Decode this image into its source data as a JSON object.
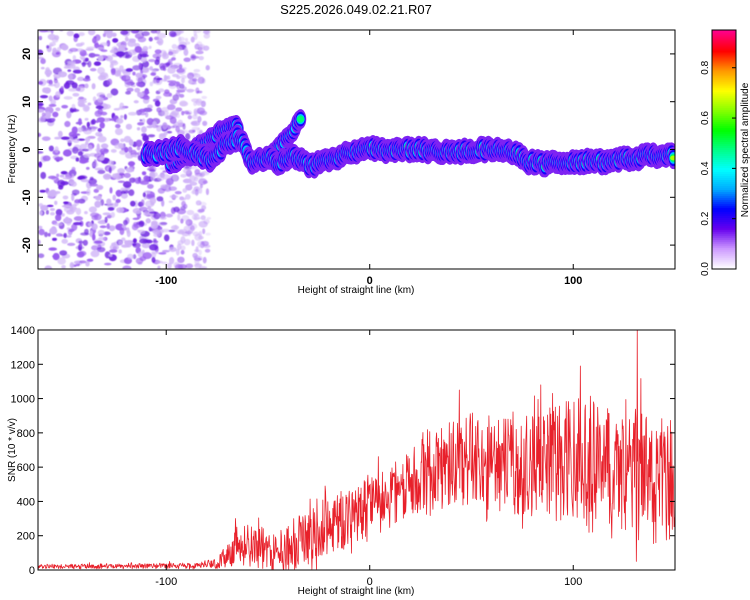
{
  "title": "S225.2026.049.02.21.R07",
  "colors": {
    "snr_line": "#e8202a",
    "background": "#ffffff",
    "frame": "#000000"
  },
  "chart_data": [
    {
      "type": "heatmap",
      "name": "spectrogram",
      "xlabel": "Height of straight line (km)",
      "ylabel": "Frequency (Hz)",
      "xlim": [
        -163,
        150
      ],
      "ylim": [
        -25,
        25
      ],
      "x_ticks": [
        {
          "value": -100,
          "label": "-100"
        },
        {
          "value": 0,
          "label": "0"
        },
        {
          "value": 100,
          "label": "100"
        }
      ],
      "y_ticks": [
        {
          "value": 20,
          "label": "20"
        },
        {
          "value": 10,
          "label": "10"
        },
        {
          "value": 0,
          "label": "0"
        },
        {
          "value": -10,
          "label": "-10"
        },
        {
          "value": -20,
          "label": "-20"
        }
      ],
      "noise_region_x": [
        -163,
        -79
      ],
      "signal_track": [
        {
          "x": -110,
          "f": -1.0
        },
        {
          "x": -100,
          "f": -0.5
        },
        {
          "x": -92,
          "f": 0.5
        },
        {
          "x": -85,
          "f": -1.0
        },
        {
          "x": -78,
          "f": -2.0
        },
        {
          "x": -70,
          "f": 1.5
        },
        {
          "x": -64,
          "f": 2.5
        },
        {
          "x": -58,
          "f": -2.5
        },
        {
          "x": -50,
          "f": -1.5
        },
        {
          "x": -45,
          "f": -3.0
        },
        {
          "x": -38,
          "f": -1.0
        },
        {
          "x": -30,
          "f": -3.5
        },
        {
          "x": -22,
          "f": -2.5
        },
        {
          "x": -15,
          "f": -1.5
        },
        {
          "x": -8,
          "f": -0.5
        },
        {
          "x": 0,
          "f": 0.5
        },
        {
          "x": 8,
          "f": -0.5
        },
        {
          "x": 15,
          "f": 0.0
        },
        {
          "x": 25,
          "f": 0.0
        },
        {
          "x": 35,
          "f": -0.5
        },
        {
          "x": 45,
          "f": -0.5
        },
        {
          "x": 55,
          "f": 0.0
        },
        {
          "x": 65,
          "f": 0.0
        },
        {
          "x": 72,
          "f": -0.5
        },
        {
          "x": 78,
          "f": -2.5
        },
        {
          "x": 85,
          "f": -3.0
        },
        {
          "x": 95,
          "f": -2.5
        },
        {
          "x": 105,
          "f": -2.5
        },
        {
          "x": 115,
          "f": -2.5
        },
        {
          "x": 125,
          "f": -2.0
        },
        {
          "x": 135,
          "f": -1.5
        },
        {
          "x": 145,
          "f": -1.0
        },
        {
          "x": 150,
          "f": -1.5
        }
      ],
      "branch_tracks": [
        [
          {
            "x": -98,
            "f": -3
          },
          {
            "x": -88,
            "f": -1
          },
          {
            "x": -80,
            "f": 2
          },
          {
            "x": -72,
            "f": 4
          },
          {
            "x": -64,
            "f": 5
          }
        ],
        [
          {
            "x": -52,
            "f": -3
          },
          {
            "x": -45,
            "f": 0
          },
          {
            "x": -40,
            "f": 3
          },
          {
            "x": -34,
            "f": 6
          }
        ]
      ],
      "colorbar": {
        "label": "Normalized spectral amplitude",
        "range": [
          0,
          0.95
        ],
        "ticks": [
          {
            "value": 0.0,
            "label": "0.0"
          },
          {
            "value": 0.2,
            "label": "0.2"
          },
          {
            "value": 0.4,
            "label": "0.4"
          },
          {
            "value": 0.6,
            "label": "0.6"
          },
          {
            "value": 0.8,
            "label": "0.8"
          }
        ],
        "colormap": [
          "#ffffff",
          "#cc99ff",
          "#6600ee",
          "#0000ff",
          "#00aaff",
          "#00ffff",
          "#00ff88",
          "#00ff00",
          "#88ff00",
          "#ffff00",
          "#ff9900",
          "#ff0000",
          "#ff0088"
        ]
      }
    },
    {
      "type": "line",
      "name": "snr",
      "xlabel": "Height of straight line (km)",
      "ylabel": "SNR (10 * v/v)",
      "xlim": [
        -163,
        150
      ],
      "ylim": [
        0,
        1400
      ],
      "x_ticks": [
        {
          "value": -100,
          "label": "-100"
        },
        {
          "value": 0,
          "label": "0"
        },
        {
          "value": 100,
          "label": "100"
        }
      ],
      "y_ticks": [
        {
          "value": 0,
          "label": "0"
        },
        {
          "value": 200,
          "label": "200"
        },
        {
          "value": 400,
          "label": "400"
        },
        {
          "value": 600,
          "label": "600"
        },
        {
          "value": 800,
          "label": "800"
        },
        {
          "value": 1000,
          "label": "1000"
        },
        {
          "value": 1200,
          "label": "1200"
        },
        {
          "value": 1400,
          "label": "1400"
        }
      ],
      "envelope": [
        {
          "x": -163,
          "base": 20,
          "amp": 15
        },
        {
          "x": -85,
          "base": 25,
          "amp": 20
        },
        {
          "x": -75,
          "base": 40,
          "amp": 40
        },
        {
          "x": -65,
          "base": 130,
          "amp": 150
        },
        {
          "x": -55,
          "base": 140,
          "amp": 180
        },
        {
          "x": -45,
          "base": 100,
          "amp": 120
        },
        {
          "x": -35,
          "base": 160,
          "amp": 220
        },
        {
          "x": -25,
          "base": 230,
          "amp": 230
        },
        {
          "x": -15,
          "base": 270,
          "amp": 230
        },
        {
          "x": -5,
          "base": 340,
          "amp": 220
        },
        {
          "x": 5,
          "base": 400,
          "amp": 200
        },
        {
          "x": 15,
          "base": 460,
          "amp": 230
        },
        {
          "x": 25,
          "base": 540,
          "amp": 280
        },
        {
          "x": 35,
          "base": 590,
          "amp": 300
        },
        {
          "x": 45,
          "base": 640,
          "amp": 330
        },
        {
          "x": 55,
          "base": 600,
          "amp": 320
        },
        {
          "x": 65,
          "base": 620,
          "amp": 340
        },
        {
          "x": 75,
          "base": 580,
          "amp": 360
        },
        {
          "x": 85,
          "base": 640,
          "amp": 400
        },
        {
          "x": 95,
          "base": 660,
          "amp": 420
        },
        {
          "x": 105,
          "base": 620,
          "amp": 440
        },
        {
          "x": 115,
          "base": 600,
          "amp": 450
        },
        {
          "x": 125,
          "base": 620,
          "amp": 470
        },
        {
          "x": 135,
          "base": 560,
          "amp": 500
        },
        {
          "x": 145,
          "base": 520,
          "amp": 480
        },
        {
          "x": 150,
          "base": 500,
          "amp": 450
        }
      ],
      "peaks": [
        {
          "x": 131.5,
          "y": 1400
        },
        {
          "x": 131.0,
          "y": 50
        },
        {
          "x": 103.5,
          "y": 1190
        },
        {
          "x": 84.0,
          "y": 1080
        },
        {
          "x": 44.0,
          "y": 1050
        },
        {
          "x": -66.0,
          "y": 300
        },
        {
          "x": -53.0,
          "y": 250
        },
        {
          "x": -22.0,
          "y": 490
        }
      ]
    }
  ]
}
